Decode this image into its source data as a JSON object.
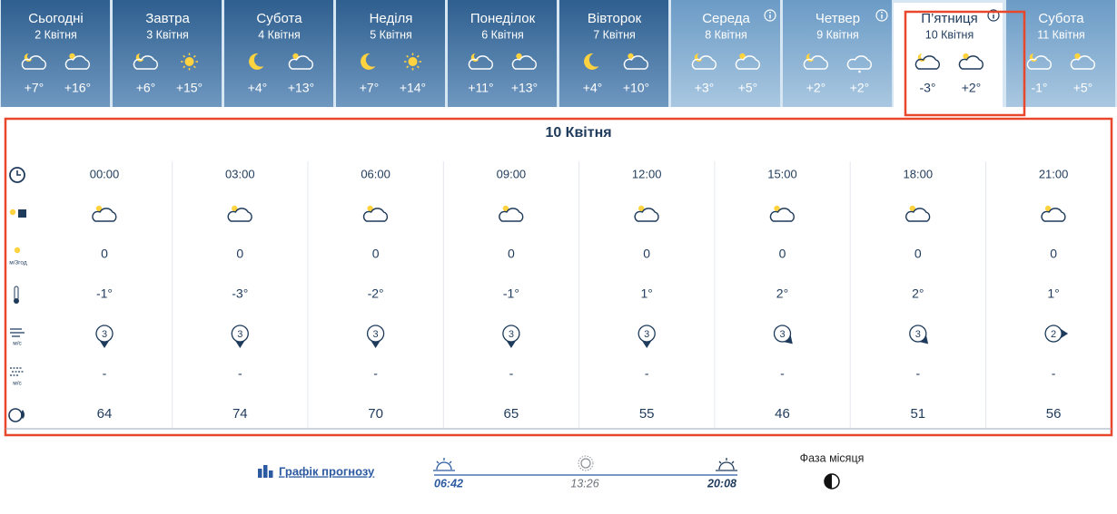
{
  "days": [
    {
      "name": "Сьогодні",
      "date": "2 Квітня",
      "night": "+7°",
      "day": "+16°"
    },
    {
      "name": "Завтра",
      "date": "3 Квітня",
      "night": "+6°",
      "day": "+15°"
    },
    {
      "name": "Субота",
      "date": "4 Квітня",
      "night": "+4°",
      "day": "+13°"
    },
    {
      "name": "Неділя",
      "date": "5 Квітня",
      "night": "+7°",
      "day": "+14°"
    },
    {
      "name": "Понеділок",
      "date": "6 Квітня",
      "night": "+11°",
      "day": "+13°"
    },
    {
      "name": "Вівторок",
      "date": "7 Квітня",
      "night": "+4°",
      "day": "+10°"
    },
    {
      "name": "Середа",
      "date": "8 Квітня",
      "night": "+3°",
      "day": "+5°"
    },
    {
      "name": "Четвер",
      "date": "9 Квітня",
      "night": "+2°",
      "day": "+2°"
    },
    {
      "name": "П’ятниця",
      "date": "10 Квітня",
      "night": "-3°",
      "day": "+2°"
    },
    {
      "name": "Субота",
      "date": "11 Квітня",
      "night": "-1°",
      "day": "+5°"
    }
  ],
  "details": {
    "title": "10 Квітня",
    "times": [
      "00:00",
      "03:00",
      "06:00",
      "09:00",
      "12:00",
      "15:00",
      "18:00",
      "21:00"
    ],
    "precipitation_unit": "м/3год",
    "precipitation": [
      "0",
      "0",
      "0",
      "0",
      "0",
      "0",
      "0",
      "0"
    ],
    "temperature": [
      "-1°",
      "-3°",
      "-2°",
      "-1°",
      "1°",
      "2°",
      "2°",
      "1°"
    ],
    "wind_unit": "м/с",
    "wind": [
      3,
      3,
      3,
      3,
      3,
      3,
      3,
      2
    ],
    "gust_unit": "м/с",
    "gusts": [
      "-",
      "-",
      "-",
      "-",
      "-",
      "-",
      "-",
      "-"
    ],
    "humidity": [
      64,
      74,
      70,
      65,
      55,
      46,
      51,
      56
    ]
  },
  "footer": {
    "chart_link": "Графік прогнозу",
    "sunrise": "06:42",
    "noon": "13:26",
    "sunset": "20:08",
    "moon_phase": "Фаза місяця"
  }
}
